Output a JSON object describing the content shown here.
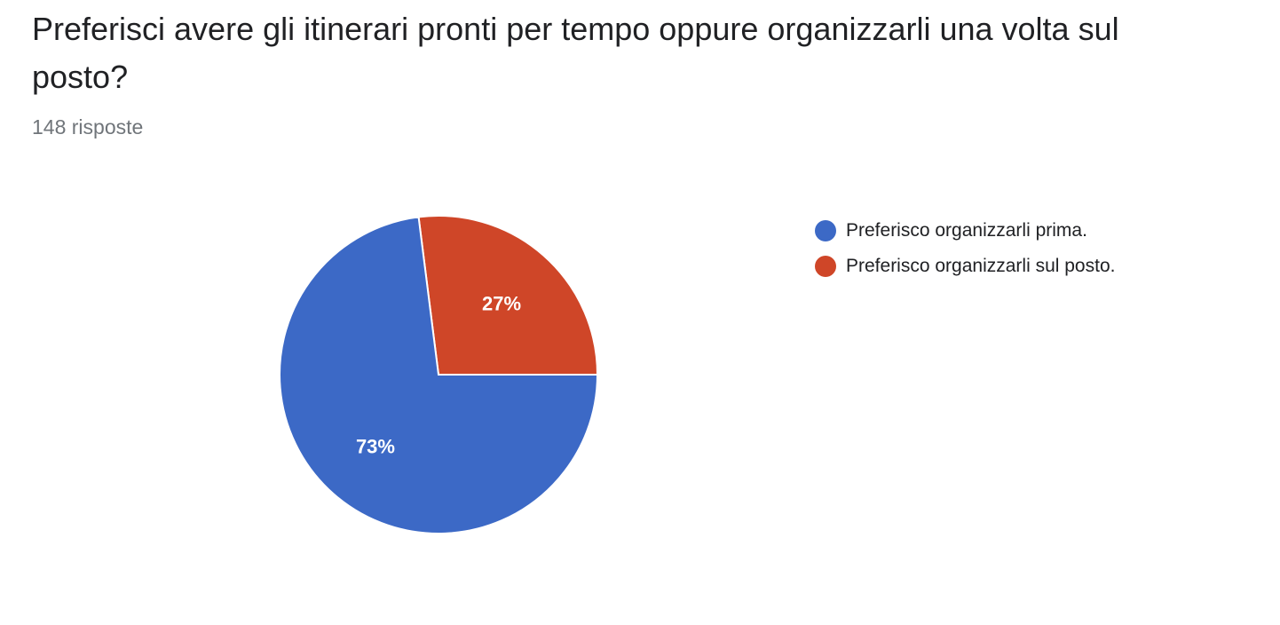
{
  "question": {
    "title": "Preferisci avere gli itinerari pronti per tempo oppure organizzarli una volta sul posto?",
    "responses": "148 risposte"
  },
  "chart_data": {
    "type": "pie",
    "categories": [
      "Preferisco organizzarli prima.",
      "Preferisco organizzarli sul posto."
    ],
    "values": [
      73,
      27
    ],
    "data_labels": [
      "73%",
      "27%"
    ],
    "colors": [
      "#3c69c6",
      "#cf4628"
    ],
    "legend_position": "right"
  }
}
